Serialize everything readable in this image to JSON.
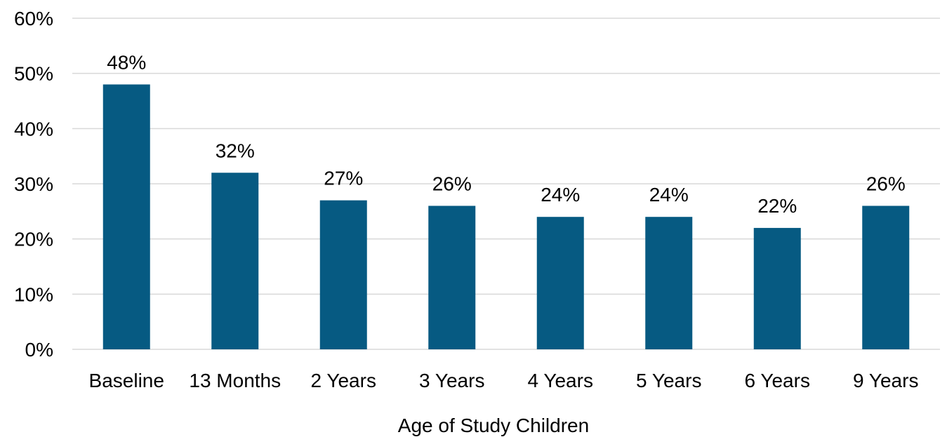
{
  "chart_data": {
    "type": "bar",
    "title": "",
    "xlabel": "Age of Study Children",
    "ylabel": "",
    "categories": [
      "Baseline",
      "13 Months",
      "2 Years",
      "3 Years",
      "4 Years",
      "5 Years",
      "6 Years",
      "9 Years"
    ],
    "values": [
      48,
      32,
      27,
      26,
      24,
      24,
      22,
      26
    ],
    "value_labels": [
      "48%",
      "32%",
      "27%",
      "26%",
      "24%",
      "24%",
      "22%",
      "26%"
    ],
    "ylim": [
      0,
      60
    ],
    "yticks": [
      0,
      10,
      20,
      30,
      40,
      50,
      60
    ],
    "ytick_labels": [
      "0%",
      "10%",
      "20%",
      "30%",
      "40%",
      "50%",
      "60%"
    ],
    "grid": true,
    "legend": "none",
    "colors": {
      "bar": "#065A82",
      "grid": "#D9D9D9"
    }
  }
}
